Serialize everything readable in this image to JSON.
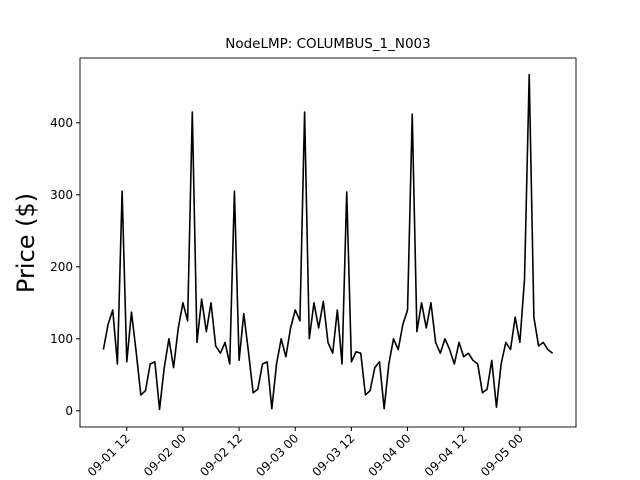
{
  "chart_data": {
    "type": "line",
    "title": "NodeLMP: COLUMBUS_1_N003",
    "ylabel": "Price ($)",
    "x": [
      "09-01 07",
      "09-01 08",
      "09-01 09",
      "09-01 10",
      "09-01 11",
      "09-01 12",
      "09-01 13",
      "09-01 14",
      "09-01 15",
      "09-01 16",
      "09-01 17",
      "09-01 18",
      "09-01 19",
      "09-01 20",
      "09-01 21",
      "09-01 22",
      "09-01 23",
      "09-02 00",
      "09-02 01",
      "09-02 02",
      "09-02 03",
      "09-02 04",
      "09-02 05",
      "09-02 06",
      "09-02 07",
      "09-02 08",
      "09-02 09",
      "09-02 10",
      "09-02 11",
      "09-02 12",
      "09-02 13",
      "09-02 14",
      "09-02 15",
      "09-02 16",
      "09-02 17",
      "09-02 18",
      "09-02 19",
      "09-02 20",
      "09-02 21",
      "09-02 22",
      "09-02 23",
      "09-03 00",
      "09-03 01",
      "09-03 02",
      "09-03 03",
      "09-03 04",
      "09-03 05",
      "09-03 06",
      "09-03 07",
      "09-03 08",
      "09-03 09",
      "09-03 10",
      "09-03 11",
      "09-03 12",
      "09-03 13",
      "09-03 14",
      "09-03 15",
      "09-03 16",
      "09-03 17",
      "09-03 18",
      "09-03 19",
      "09-03 20",
      "09-03 21",
      "09-03 22",
      "09-03 23",
      "09-04 00",
      "09-04 01",
      "09-04 02",
      "09-04 03",
      "09-04 04",
      "09-04 05",
      "09-04 06",
      "09-04 07",
      "09-04 08",
      "09-04 09",
      "09-04 10",
      "09-04 11",
      "09-04 12",
      "09-04 13",
      "09-04 14",
      "09-04 15",
      "09-04 16",
      "09-04 17",
      "09-04 18",
      "09-04 19",
      "09-04 20",
      "09-04 21",
      "09-04 22",
      "09-04 23",
      "09-05 00",
      "09-05 01",
      "09-05 02",
      "09-05 03",
      "09-05 04",
      "09-05 05",
      "09-05 06",
      "09-05 07"
    ],
    "series": [
      {
        "color": "#000000",
        "values": [
          85,
          120,
          140,
          65,
          305,
          68,
          137,
          82,
          22,
          28,
          65,
          68,
          2,
          60,
          100,
          60,
          115,
          150,
          125,
          415,
          95,
          155,
          110,
          150,
          90,
          80,
          95,
          65,
          305,
          70,
          135,
          82,
          25,
          30,
          65,
          68,
          3,
          65,
          100,
          75,
          115,
          140,
          125,
          415,
          100,
          150,
          115,
          152,
          95,
          80,
          140,
          65,
          304,
          68,
          82,
          80,
          22,
          28,
          60,
          68,
          3,
          65,
          100,
          85,
          120,
          140,
          412,
          110,
          150,
          115,
          150,
          95,
          80,
          100,
          85,
          65,
          95,
          75,
          80,
          70,
          65,
          25,
          30,
          70,
          5,
          65,
          95,
          85,
          130,
          95,
          183,
          467,
          130,
          90,
          95,
          85,
          80
        ]
      }
    ],
    "xlim": [
      "09-01 02",
      "09-05 12"
    ],
    "xticks": [
      "09-01 12",
      "09-02 00",
      "09-02 12",
      "09-03 00",
      "09-03 12",
      "09-04 00",
      "09-04 12",
      "09-05 00"
    ],
    "ylim": [
      -22.5,
      490
    ],
    "yticks": [
      0,
      100,
      200,
      300,
      400
    ]
  }
}
